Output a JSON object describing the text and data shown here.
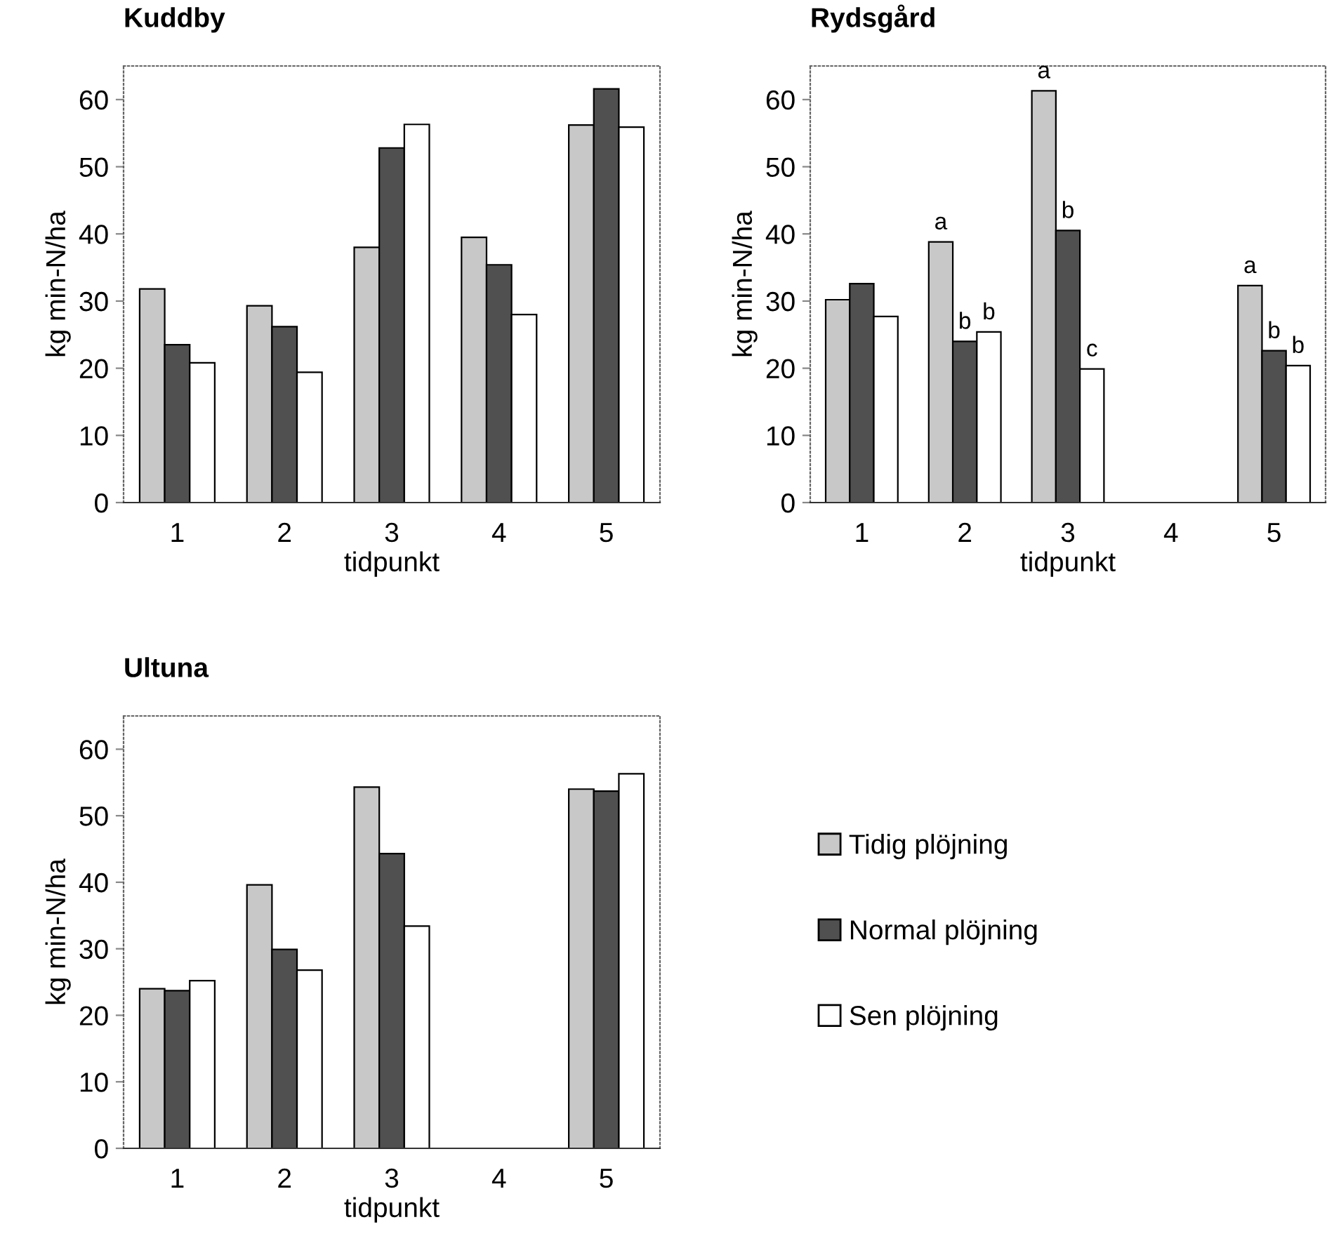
{
  "chart_data": [
    {
      "type": "bar",
      "title": "Kuddby",
      "xlabel": "tidpunkt",
      "ylabel": "kg min-N/ha",
      "categories": [
        "1",
        "2",
        "3",
        "4",
        "5"
      ],
      "ylim": [
        0,
        65
      ],
      "yticks": [
        0,
        10,
        20,
        30,
        40,
        50,
        60
      ],
      "grid": false,
      "legend": false,
      "series": [
        {
          "color": "#c8c8c8",
          "values": [
            31.8,
            29.3,
            38,
            39.5,
            56.2
          ]
        },
        {
          "color": "#505050",
          "values": [
            23.5,
            26.2,
            52.8,
            35.4,
            61.6
          ]
        },
        {
          "color": "#ffffff",
          "values": [
            20.8,
            19.4,
            56.3,
            28,
            55.9
          ]
        }
      ]
    },
    {
      "type": "bar",
      "title": "Rydsgård",
      "xlabel": "tidpunkt",
      "ylabel": "kg min-N/ha",
      "categories": [
        "1",
        "2",
        "3",
        "4",
        "5"
      ],
      "ylim": [
        0,
        65
      ],
      "yticks": [
        0,
        10,
        20,
        30,
        40,
        50,
        60
      ],
      "grid": false,
      "legend": false,
      "series": [
        {
          "color": "#c8c8c8",
          "values": [
            30.2,
            38.8,
            61.3,
            null,
            32.3
          ],
          "value_labels": [
            null,
            "a",
            "a",
            null,
            "a"
          ]
        },
        {
          "color": "#505050",
          "values": [
            32.6,
            24,
            40.5,
            null,
            22.6
          ],
          "value_labels": [
            null,
            "b",
            "b",
            null,
            "b"
          ]
        },
        {
          "color": "#ffffff",
          "values": [
            27.7,
            25.4,
            19.9,
            null,
            20.4
          ],
          "value_labels": [
            null,
            "b",
            "c",
            null,
            "b"
          ]
        }
      ]
    },
    {
      "type": "bar",
      "title": "Ultuna",
      "xlabel": "tidpunkt",
      "ylabel": "kg min-N/ha",
      "categories": [
        "1",
        "2",
        "3",
        "4",
        "5"
      ],
      "ylim": [
        0,
        65
      ],
      "yticks": [
        0,
        10,
        20,
        30,
        40,
        50,
        60
      ],
      "grid": false,
      "legend": "right",
      "series": [
        {
          "name": "Tidig plöjning",
          "color": "#c8c8c8",
          "values": [
            24,
            39.6,
            54.3,
            null,
            54
          ]
        },
        {
          "name": "Normal plöjning",
          "color": "#505050",
          "values": [
            23.7,
            29.9,
            44.3,
            null,
            53.7
          ]
        },
        {
          "name": "Sen plöjning",
          "color": "#ffffff",
          "values": [
            25.2,
            26.8,
            33.4,
            null,
            56.3
          ]
        }
      ]
    }
  ]
}
